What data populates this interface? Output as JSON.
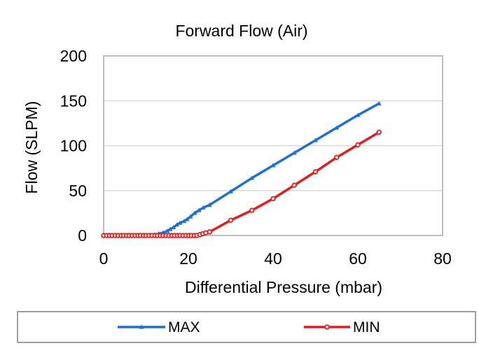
{
  "chart_data": {
    "type": "line",
    "title": "Forward Flow (Air)",
    "xlabel": "Differential Pressure (mbar)",
    "ylabel": "Flow (SLPM)",
    "xlim": [
      0,
      80
    ],
    "ylim": [
      0,
      200
    ],
    "xticks": [
      "0",
      "20",
      "40",
      "60",
      "80"
    ],
    "yticks": [
      "0",
      "50",
      "100",
      "150",
      "200"
    ],
    "grid": "horizontal",
    "legend_position": "bottom",
    "series": [
      {
        "name": "MAX",
        "color": "#1f6fd6",
        "marker": "triangle",
        "x": [
          0,
          1,
          2,
          3,
          4,
          5,
          6,
          7,
          8,
          9,
          10,
          11,
          12,
          13,
          14,
          15,
          15.7,
          16.5,
          17.3,
          18,
          19,
          19.7,
          20.5,
          21.5,
          22.5,
          23.5,
          25,
          30,
          35,
          40,
          45,
          50,
          55,
          60,
          65
        ],
        "y": [
          0,
          0,
          0,
          0,
          0,
          0,
          0,
          0,
          0,
          0,
          0,
          0,
          1,
          2,
          3,
          5,
          7,
          9,
          12,
          14,
          16,
          18,
          21,
          25,
          28,
          31,
          34,
          49,
          64,
          78,
          92,
          106,
          120,
          134,
          147
        ]
      },
      {
        "name": "MIN",
        "color": "#e81b1b",
        "marker": "circle",
        "x": [
          0,
          0.7,
          1.4,
          2,
          2.7,
          3.4,
          4.1,
          4.7,
          5.4,
          6,
          6.7,
          7.4,
          8.1,
          8.7,
          9.4,
          10,
          10.7,
          11.4,
          12.1,
          12.7,
          13.4,
          14,
          14.7,
          15.4,
          16.1,
          16.7,
          17.4,
          18,
          18.7,
          19.4,
          20.1,
          20.7,
          21.4,
          22,
          22.7,
          23.4,
          24.1,
          25,
          30,
          35,
          40,
          45,
          50,
          55,
          60,
          65
        ],
        "y": [
          0,
          0,
          0,
          0,
          0,
          0,
          0,
          0,
          0,
          0,
          0,
          0,
          0,
          0,
          0,
          0,
          0,
          0,
          0,
          0,
          0,
          0,
          0,
          0,
          0,
          0,
          0,
          0,
          0,
          0,
          0,
          0,
          0,
          0,
          1,
          2,
          3,
          4,
          17,
          28,
          41,
          56,
          71,
          87,
          101,
          115
        ]
      }
    ]
  },
  "colors": {
    "grid": "#d9d9d9",
    "plot_border": "#bfbfbf",
    "legend_border": "#7f7f7f"
  }
}
